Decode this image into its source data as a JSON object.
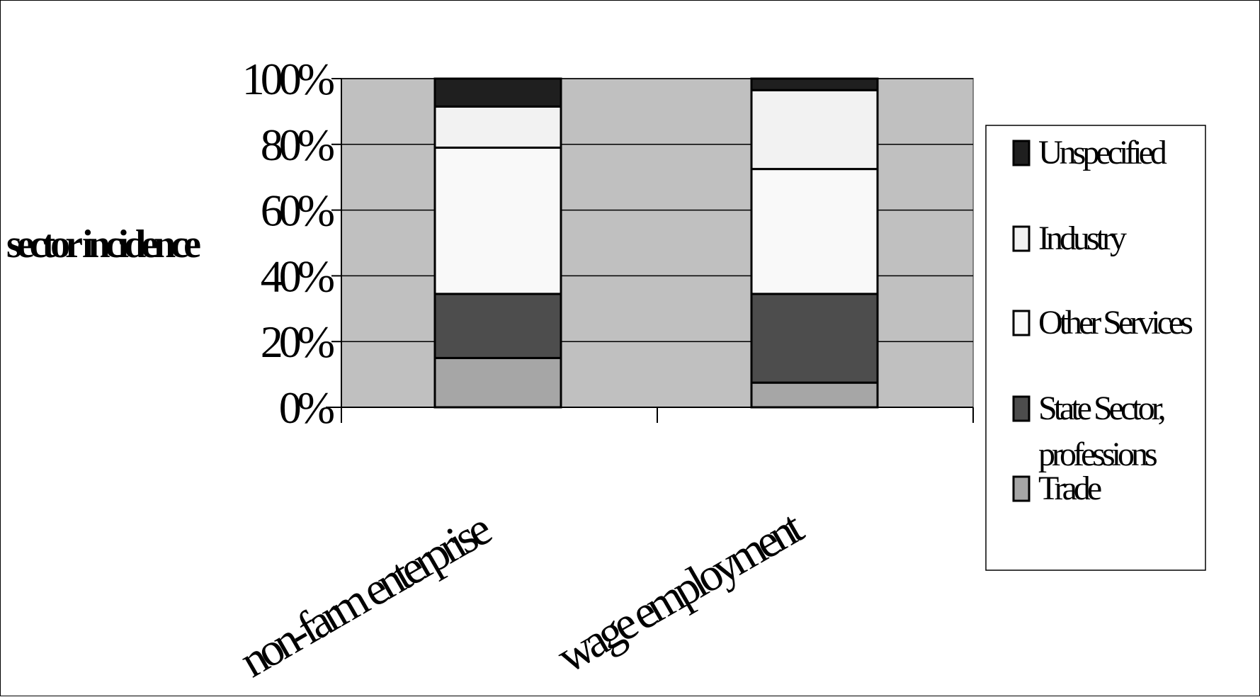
{
  "chart_data": {
    "type": "bar",
    "stacked": true,
    "percent_stacked": true,
    "title": "",
    "xlabel": "",
    "ylabel": "sector incidence",
    "ylim": [
      0,
      100
    ],
    "y_ticks": [
      "0%",
      "20%",
      "40%",
      "60%",
      "80%",
      "100%"
    ],
    "categories": [
      "non-farm enterprise",
      "wage employment"
    ],
    "series": [
      {
        "name": "Trade",
        "values": [
          15,
          7.5
        ],
        "color": "#a6a6a6"
      },
      {
        "name": "State Sector, professions",
        "values": [
          19.5,
          27
        ],
        "color": "#4d4d4d"
      },
      {
        "name": "Other Services",
        "values": [
          44.5,
          38
        ],
        "color": "#f9f9f9"
      },
      {
        "name": "Industry",
        "values": [
          12.5,
          24
        ],
        "color": "#f2f2f2"
      },
      {
        "name": "Unspecified",
        "values": [
          8.5,
          3.5
        ],
        "color": "#1f1f1f"
      }
    ],
    "legend": {
      "position": "right",
      "order": [
        "Unspecified",
        "Industry",
        "Other Services",
        "State Sector, professions",
        "Trade"
      ]
    },
    "plot_background": "#c0c0c0",
    "grid": true
  }
}
